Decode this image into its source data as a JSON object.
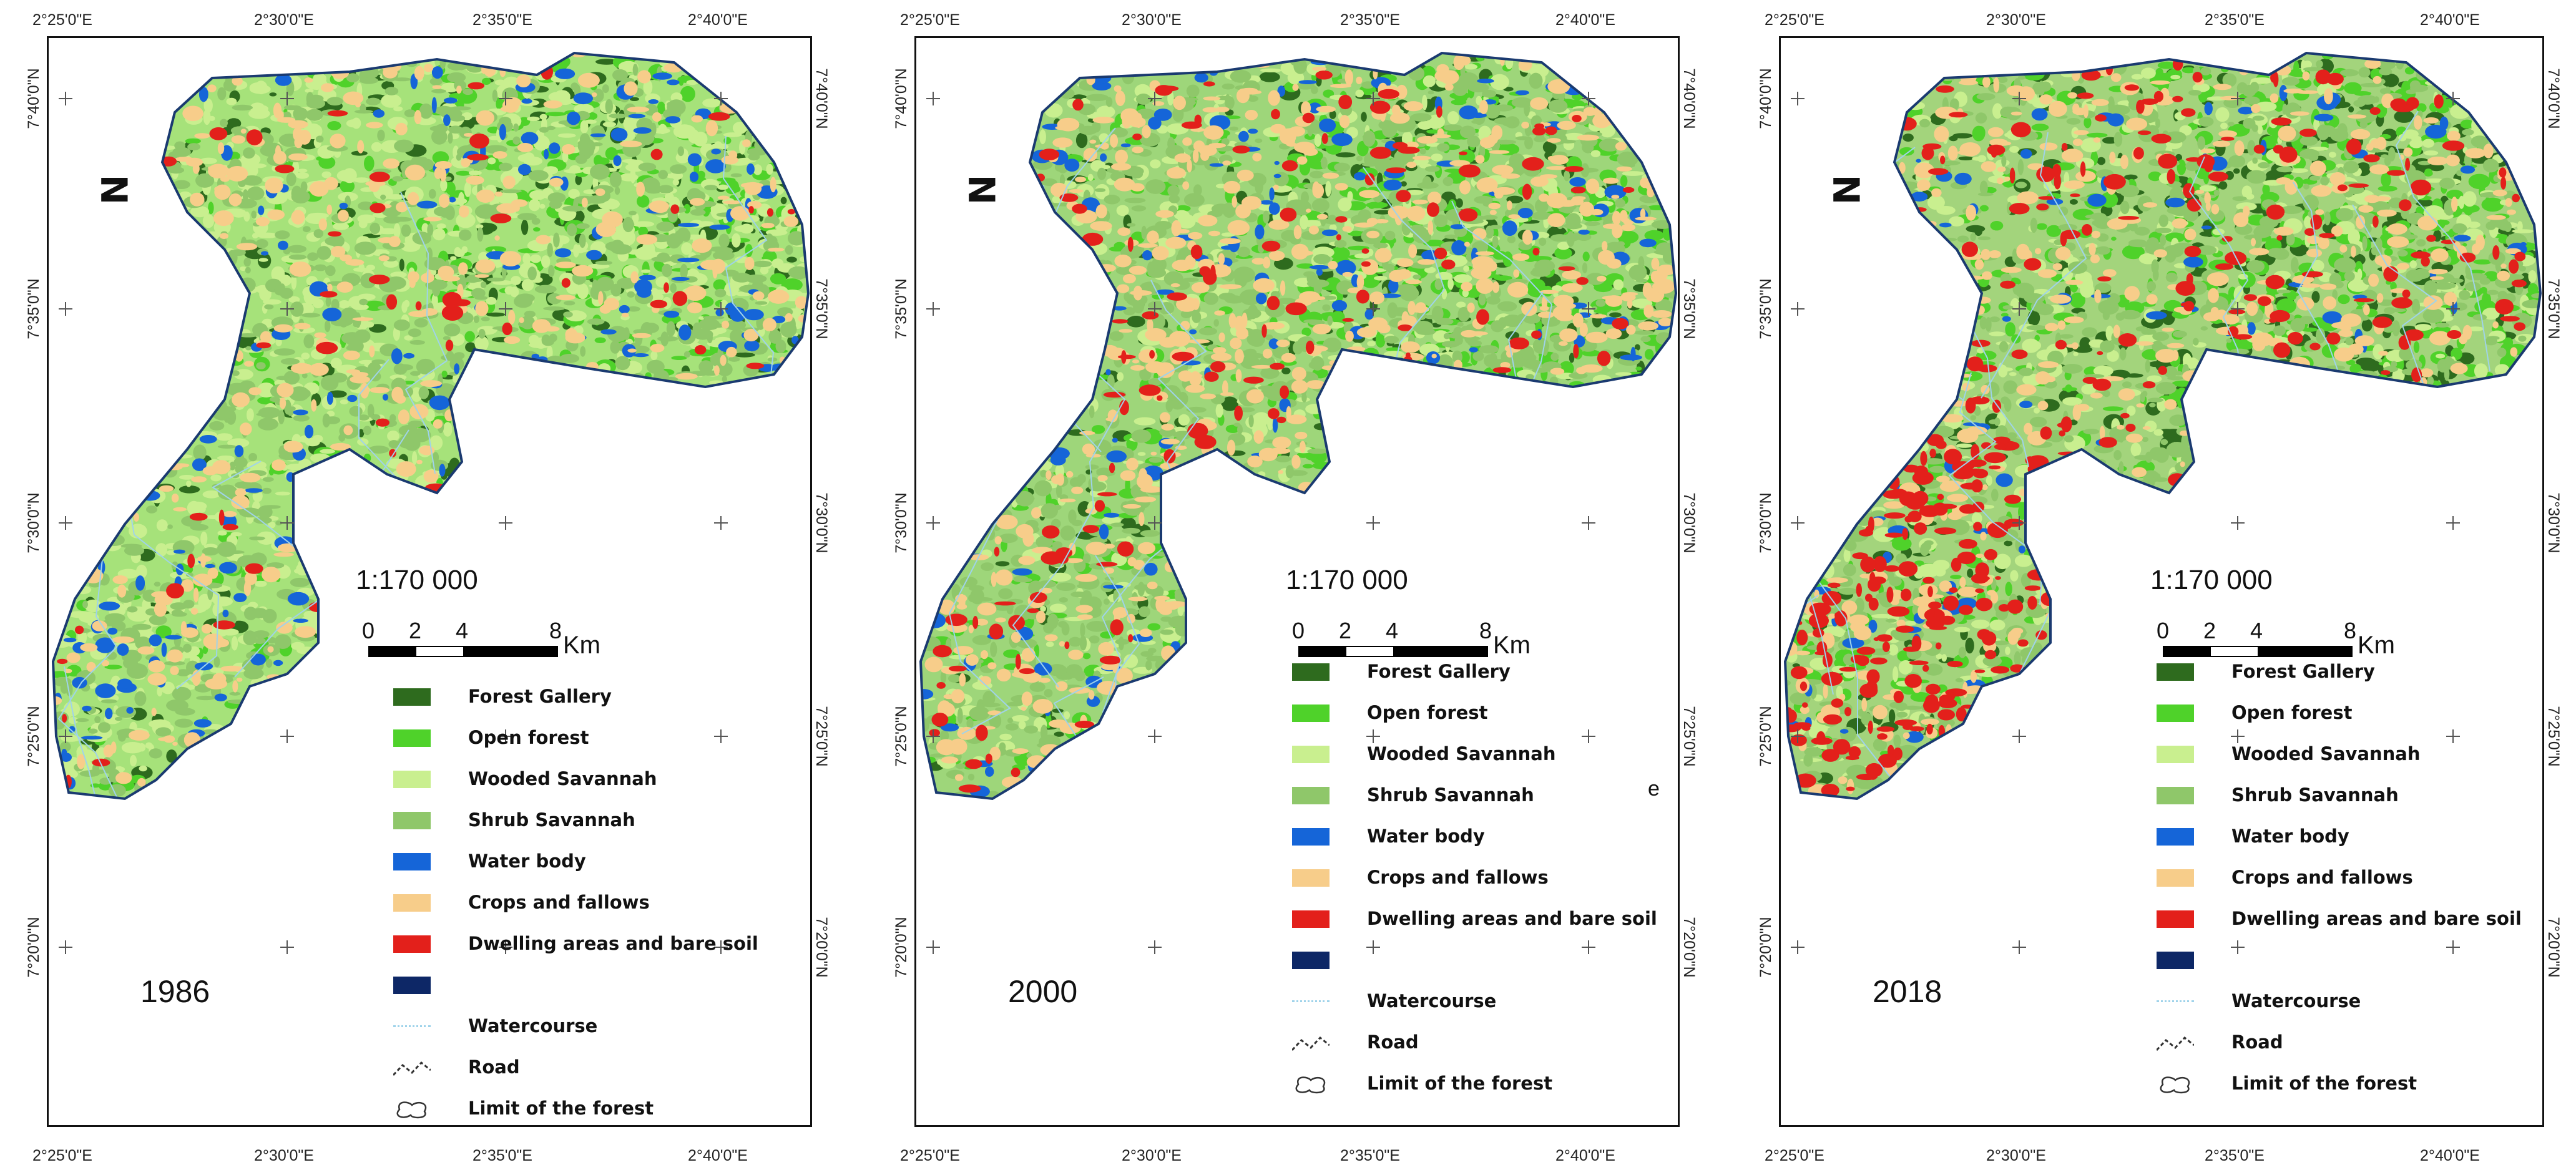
{
  "lon_labels": [
    "2°25'0\"E",
    "2°30'0\"E",
    "2°35'0\"E",
    "2°40'0\"E"
  ],
  "lat_labels": [
    "7°40'0\"N",
    "7°35'0\"N",
    "7°30'0\"N",
    "7°25'0\"N",
    "7°20'0\"N"
  ],
  "scale": {
    "ratio": "1:170 000",
    "numbers": [
      "0",
      "2",
      "4",
      "8"
    ],
    "unit": "Km"
  },
  "north_symbol": "N",
  "legend": [
    {
      "label": "Forest Gallery",
      "color": "#2e6b1e"
    },
    {
      "label": "Open forest",
      "color": "#4fd22a"
    },
    {
      "label": "Wooded Savannah",
      "color": "#c9ef8f"
    },
    {
      "label": "Shrub Savannah",
      "color": "#8fc76a"
    },
    {
      "label": "Water body",
      "color": "#1565d8"
    },
    {
      "label": "Crops and fallows",
      "color": "#f7cd8a"
    },
    {
      "label": "Dwelling areas and bare soil",
      "color": "#e3201b"
    },
    {
      "label": "",
      "color": "#0d2766"
    },
    {
      "label": "Watercourse",
      "color": "#9fd3ea"
    },
    {
      "label": "Road",
      "color": "#333333"
    },
    {
      "label": "Limit of the forest",
      "color": "#333333"
    }
  ],
  "panels": [
    {
      "year": "1986",
      "stray_label": "",
      "dominant": "#a6e27a",
      "composition": {
        "forest_gallery": 0.08,
        "open_forest": 0.1,
        "wooded_savannah": 0.3,
        "shrub_savannah": 0.28,
        "water_body": 0.06,
        "crops_fallows": 0.12,
        "dwelling_bare_soil": 0.02
      }
    },
    {
      "year": "2000",
      "stray_label": "e",
      "dominant": "#9ed67a",
      "composition": {
        "forest_gallery": 0.08,
        "open_forest": 0.16,
        "wooded_savannah": 0.14,
        "shrub_savannah": 0.3,
        "water_body": 0.05,
        "crops_fallows": 0.2,
        "dwelling_bare_soil": 0.05
      }
    },
    {
      "year": "2018",
      "stray_label": "",
      "dominant": "#a3d47c",
      "composition": {
        "forest_gallery": 0.12,
        "open_forest": 0.18,
        "wooded_savannah": 0.14,
        "shrub_savannah": 0.24,
        "water_body": 0.03,
        "crops_fallows": 0.14,
        "dwelling_bare_soil": 0.13
      }
    }
  ]
}
